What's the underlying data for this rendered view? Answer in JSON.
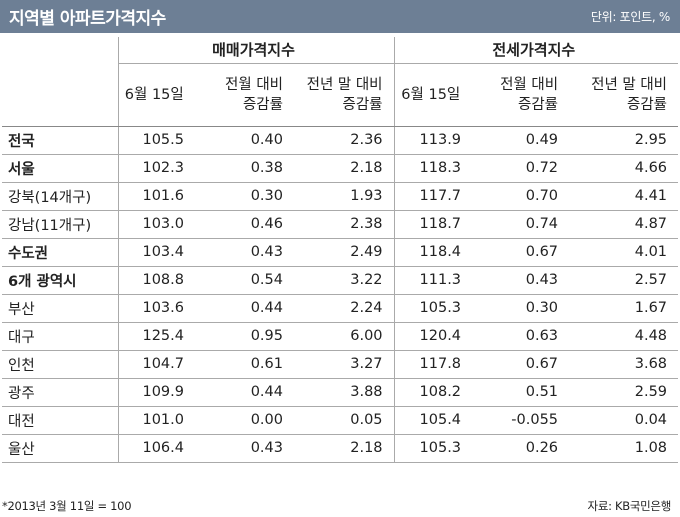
{
  "header": {
    "title": "지역별 아파트가격지수",
    "unit": "단위: 포인트, %"
  },
  "groups": {
    "sale": "매매가격지수",
    "jeonse": "전세가격지수"
  },
  "subheaders": {
    "sale": {
      "date": "6월 15일",
      "mom_1": "전월 대비",
      "mom_2": "증감률",
      "yoy_1": "전년 말 대비",
      "yoy_2": "증감률"
    },
    "jeonse": {
      "date": "6월 15일",
      "mom_1": "전월 대비",
      "mom_2": "증감률",
      "yoy_1": "전년 말 대비",
      "yoy_2": "증감률"
    }
  },
  "rows": [
    {
      "region": "전국",
      "bold": true,
      "values": [
        "105.5",
        "0.40",
        "2.36",
        "113.9",
        "0.49",
        "2.95"
      ]
    },
    {
      "region": "서울",
      "bold": true,
      "values": [
        "102.3",
        "0.38",
        "2.18",
        "118.3",
        "0.72",
        "4.66"
      ]
    },
    {
      "region": "강북(14개구)",
      "bold": false,
      "values": [
        "101.6",
        "0.30",
        "1.93",
        "117.7",
        "0.70",
        "4.41"
      ]
    },
    {
      "region": "강남(11개구)",
      "bold": false,
      "values": [
        "103.0",
        "0.46",
        "2.38",
        "118.7",
        "0.74",
        "4.87"
      ]
    },
    {
      "region": "수도권",
      "bold": true,
      "values": [
        "103.4",
        "0.43",
        "2.49",
        "118.4",
        "0.67",
        "4.01"
      ]
    },
    {
      "region": "6개 광역시",
      "bold": true,
      "values": [
        "108.8",
        "0.54",
        "3.22",
        "111.3",
        "0.43",
        "2.57"
      ]
    },
    {
      "region": "부산",
      "bold": false,
      "values": [
        "103.6",
        "0.44",
        "2.24",
        "105.3",
        "0.30",
        "1.67"
      ]
    },
    {
      "region": "대구",
      "bold": false,
      "values": [
        "125.4",
        "0.95",
        "6.00",
        "120.4",
        "0.63",
        "4.48"
      ]
    },
    {
      "region": "인천",
      "bold": false,
      "values": [
        "104.7",
        "0.61",
        "3.27",
        "117.8",
        "0.67",
        "3.68"
      ]
    },
    {
      "region": "광주",
      "bold": false,
      "values": [
        "109.9",
        "0.44",
        "3.88",
        "108.2",
        "0.51",
        "2.59"
      ]
    },
    {
      "region": "대전",
      "bold": false,
      "values": [
        "101.0",
        "0.00",
        "0.05",
        "105.4",
        "-0.055",
        "0.04"
      ]
    },
    {
      "region": "울산",
      "bold": false,
      "values": [
        "106.4",
        "0.43",
        "2.18",
        "105.3",
        "0.26",
        "1.08"
      ]
    }
  ],
  "footer": {
    "note": "*2013년 3월 11일 = 100",
    "source": "자료: KB국민은행"
  },
  "colors": {
    "title_bar": "#6d7f95",
    "rule": "#aaaaaa"
  }
}
